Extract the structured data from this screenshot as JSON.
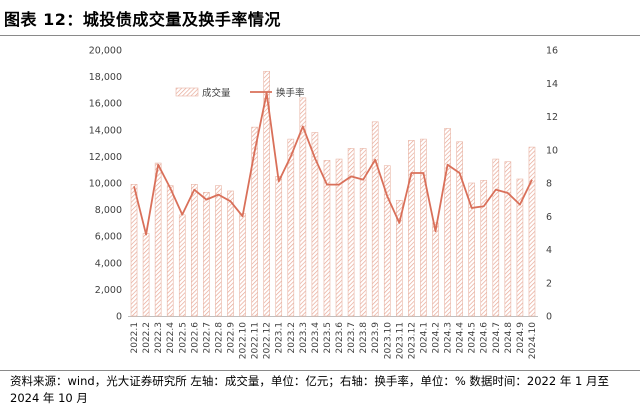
{
  "figure": {
    "title": "图表 12：城投债成交量及换手率情况",
    "source": "资料来源：wind，光大证券研究所    左轴：成交量，单位：亿元；右轴：换手率，单位：%    数据时间：2022 年 1 月至 2024 年 10 月"
  },
  "chart_data": {
    "type": "bar",
    "categories": [
      "2022.1",
      "2022.2",
      "2022.3",
      "2022.4",
      "2022.5",
      "2022.6",
      "2022.7",
      "2022.8",
      "2022.9",
      "2022.10",
      "2022.11",
      "2022.12",
      "2023.1",
      "2023.2",
      "2023.3",
      "2023.4",
      "2023.5",
      "2023.6",
      "2023.7",
      "2023.8",
      "2023.9",
      "2023.10",
      "2023.11",
      "2023.12",
      "2024.1",
      "2024.2",
      "2024.3",
      "2024.4",
      "2024.5",
      "2024.6",
      "2024.7",
      "2024.8",
      "2024.9",
      "2024.10"
    ],
    "series": [
      {
        "name": "成交量",
        "type": "bar",
        "axis": "left",
        "color": "#e8b4a4",
        "values": [
          9900,
          6200,
          11500,
          9800,
          7600,
          9900,
          9300,
          9800,
          9400,
          7700,
          14200,
          18400,
          10500,
          13300,
          16400,
          13800,
          11700,
          11800,
          12600,
          12600,
          14600,
          11300,
          8700,
          13200,
          13300,
          7000,
          14100,
          13100,
          10000,
          10200,
          11800,
          11600,
          10300,
          12700
        ]
      },
      {
        "name": "换手率",
        "type": "line",
        "axis": "right",
        "color": "#d9705a",
        "values": [
          7.8,
          4.9,
          9.1,
          7.7,
          6.1,
          7.6,
          7.0,
          7.3,
          6.9,
          6.0,
          9.9,
          13.4,
          8.1,
          9.6,
          11.4,
          9.5,
          7.9,
          7.9,
          8.4,
          8.2,
          9.4,
          7.2,
          5.6,
          8.6,
          8.6,
          5.1,
          9.1,
          8.6,
          6.5,
          6.6,
          7.6,
          7.4,
          6.7,
          8.2
        ]
      }
    ],
    "y_left": {
      "min": 0,
      "max": 20000,
      "step": 2000
    },
    "y_right": {
      "min": 0,
      "max": 16,
      "step": 2
    },
    "legend_position": "top-left",
    "grid": false
  }
}
